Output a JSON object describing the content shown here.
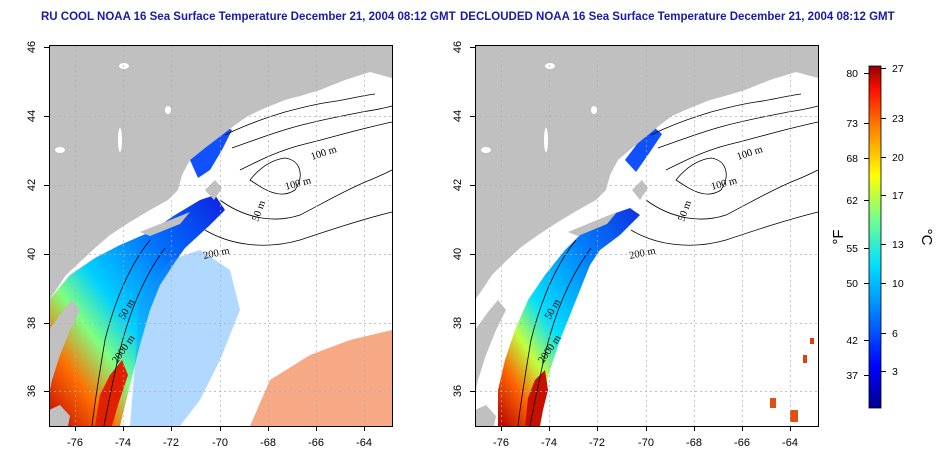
{
  "panels": [
    {
      "title": "RU COOL NOAA 16 Sea Surface Temperature December 21, 2004 08:12 GMT",
      "x_ticks": [
        "-76",
        "-74",
        "-72",
        "-70",
        "-68",
        "-66",
        "-64"
      ],
      "y_ticks": [
        "36",
        "38",
        "40",
        "42",
        "44",
        "46"
      ],
      "contour_labels": [
        "100 m",
        "100 m",
        "50 m",
        "200 m",
        "50 m",
        "2000 m"
      ]
    },
    {
      "title": "DECLOUDED NOAA 16 Sea Surface Temperature December 21, 2004 08:12 GMT",
      "x_ticks": [
        "-76",
        "-74",
        "-72",
        "-70",
        "-68",
        "-66",
        "-64"
      ],
      "y_ticks": [
        "36",
        "38",
        "40",
        "42",
        "44",
        "46"
      ],
      "contour_labels": [
        "100 m",
        "100 m",
        "50 m",
        "200 m",
        "50 m",
        "2000 m"
      ]
    }
  ],
  "colorbar": {
    "fahrenheit_unit": "°F",
    "celsius_unit": "°C",
    "fahrenheit_ticks": [
      "80",
      "73",
      "68",
      "62",
      "55",
      "50",
      "42",
      "37"
    ],
    "celsius_ticks": [
      "27",
      "23",
      "20",
      "17",
      "13",
      "10",
      "6",
      "3"
    ],
    "colors": [
      "#00008f",
      "#0000ff",
      "#0080ff",
      "#00ffff",
      "#80ff80",
      "#ffff00",
      "#ff8000",
      "#ff0000",
      "#800000"
    ]
  },
  "colors": {
    "land": "#c0c0c0",
    "ocean_nodata": "#ffffff",
    "title": "#1a1aa8"
  }
}
